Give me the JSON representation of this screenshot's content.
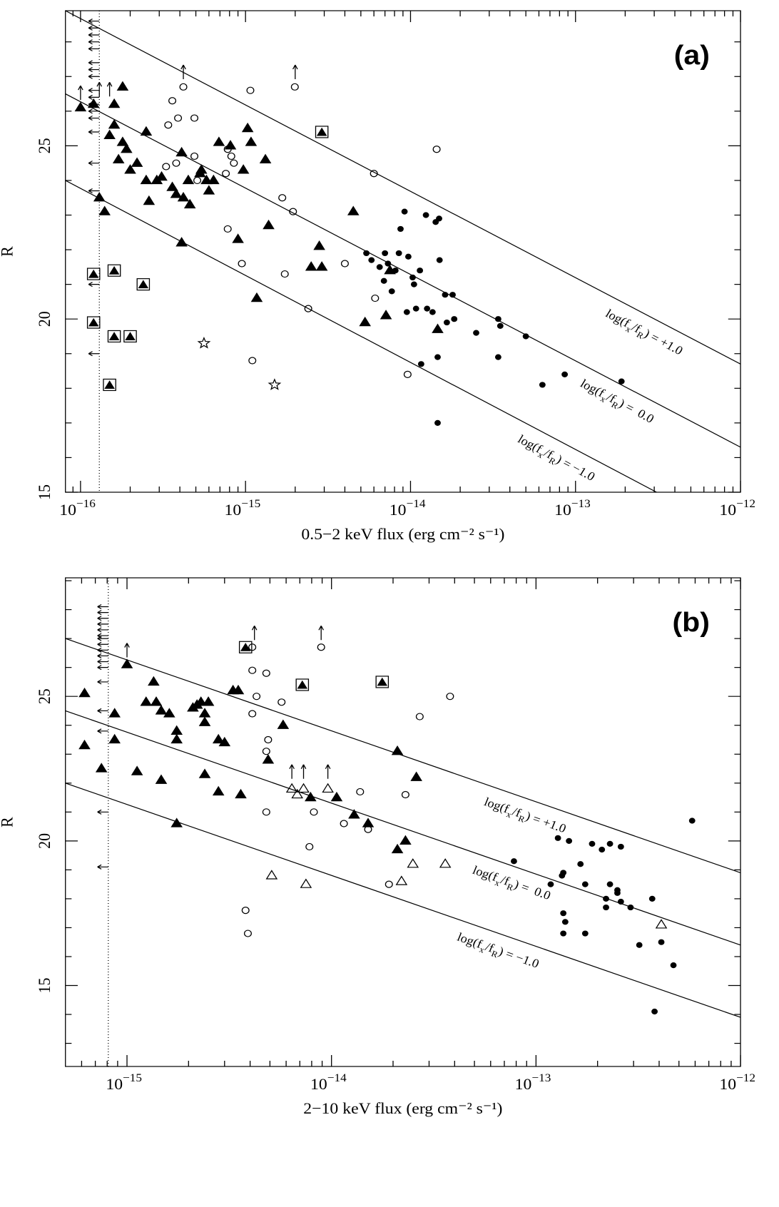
{
  "chart_data": [
    {
      "type": "scatter",
      "panel_label": "(a)",
      "x_label": "0.5−2 keV flux (erg cm⁻² s⁻¹)",
      "y_label": "R",
      "xscale": "log",
      "xlim": [
        8.1e-17,
        1e-12
      ],
      "ylim": [
        15,
        28.9
      ],
      "xticks": [
        {
          "value": 1e-16,
          "label": "10",
          "exponent": "−16"
        },
        {
          "value": 1e-15,
          "label": "10",
          "exponent": "−15"
        },
        {
          "value": 1e-14,
          "label": "10",
          "exponent": "−14"
        },
        {
          "value": 1e-13,
          "label": "10",
          "exponent": "−13"
        },
        {
          "value": 1e-12,
          "label": "10",
          "exponent": "−12"
        }
      ],
      "xminorticks": [
        9e-17,
        2e-16,
        3e-16,
        4e-16,
        5e-16,
        6e-16,
        7e-16,
        8e-16,
        9e-16,
        2e-15,
        3e-15,
        4e-15,
        5e-15,
        6e-15,
        7e-15,
        8e-15,
        9e-15,
        2e-14,
        3e-14,
        4e-14,
        5e-14,
        6e-14,
        7e-14,
        8e-14,
        9e-14,
        2e-13,
        3e-13,
        4e-13,
        5e-13,
        6e-13,
        7e-13,
        8e-13,
        9e-13
      ],
      "yticks": [
        15,
        20,
        25
      ],
      "yminorticks": [
        16,
        17,
        18,
        19,
        21,
        22,
        23,
        24,
        26,
        27,
        28
      ],
      "upper_limit_x": 1.3e-16,
      "series": [
        {
          "marker": "filled-triangle",
          "color": "#000000",
          "x": [
            1e-16,
            1.2e-16,
            1.3e-16,
            1.4e-16,
            1.5e-16,
            1.6e-16,
            1.6e-16,
            1.8e-16,
            1.7e-16,
            1.8e-16,
            1.9e-16,
            2e-16,
            2.2e-16,
            2.5e-16,
            2.5e-16,
            2.6e-16,
            2.9e-16,
            3.1e-16,
            3.6e-16,
            3.8e-16,
            4.2e-16,
            4.6e-16,
            4.1e-16,
            4.1e-16,
            4.5e-16,
            5.3e-16,
            5.4e-16,
            5.8e-16,
            6e-16,
            6.4e-16,
            6.9e-16,
            8.1e-16,
            9e-16,
            9.7e-16,
            1.03e-15,
            1.08e-15,
            1.32e-15,
            1.38e-15,
            1.17e-15,
            2.5e-15,
            2.8e-15,
            2.9e-15,
            4.5e-15,
            5.3e-15,
            7.1e-15,
            7.5e-15,
            1.46e-14
          ],
          "values": [
            26.1,
            26.2,
            23.5,
            23.1,
            25.3,
            25.6,
            26.2,
            26.7,
            24.6,
            25.1,
            24.9,
            24.3,
            24.5,
            25.4,
            24.0,
            23.4,
            24.0,
            24.1,
            23.8,
            23.6,
            23.5,
            23.3,
            22.2,
            24.8,
            24.0,
            24.2,
            24.3,
            24.0,
            23.7,
            24.0,
            25.1,
            25.0,
            22.3,
            24.3,
            25.5,
            25.1,
            24.6,
            22.7,
            20.6,
            21.5,
            22.1,
            21.5,
            23.1,
            19.9,
            20.1,
            21.4,
            19.7
          ]
        },
        {
          "marker": "open-circle",
          "color": "#000000",
          "x": [
            3.4e-16,
            3.6e-16,
            3.9e-16,
            4.2e-16,
            4.9e-16,
            3.3e-16,
            3.8e-16,
            4.9e-16,
            5.1e-16,
            7.6e-16,
            7.8e-16,
            7.8e-16,
            8.2e-16,
            8.5e-16,
            9.5e-16,
            1.07e-15,
            1.1e-15,
            1.67e-15,
            1.73e-15,
            1.94e-15,
            1.99e-15,
            2.4e-15,
            4e-15,
            6e-15,
            6.1e-15,
            9.6e-15,
            1.44e-14
          ],
          "values": [
            25.6,
            26.3,
            25.8,
            26.7,
            25.8,
            24.4,
            24.5,
            24.7,
            24.0,
            24.2,
            22.6,
            24.9,
            24.7,
            24.5,
            21.6,
            26.6,
            18.8,
            23.5,
            21.3,
            23.1,
            26.7,
            20.3,
            21.6,
            24.2,
            20.6,
            18.4,
            24.9
          ]
        },
        {
          "marker": "filled-circle",
          "color": "#000000",
          "x": [
            5.4e-15,
            5.8e-15,
            6.5e-15,
            6.9e-15,
            7e-15,
            7.3e-15,
            7.7e-15,
            8.1e-15,
            8.5e-15,
            8.7e-15,
            9.2e-15,
            9.5e-15,
            9.7e-15,
            1.03e-14,
            1.05e-14,
            1.08e-14,
            1.14e-14,
            1.16e-14,
            1.24e-14,
            1.26e-14,
            1.42e-14,
            1.49e-14,
            1.46e-14,
            1.62e-14,
            1.66e-14,
            1.8e-14,
            1.84e-14,
            1.46e-14,
            2.5e-14,
            3.4e-14,
            3.5e-14,
            3.4e-14,
            5e-14,
            6.3e-14,
            8.6e-14,
            1.9e-13,
            1.5e-14,
            1.36e-14
          ],
          "values": [
            21.9,
            21.7,
            21.5,
            21.1,
            21.9,
            21.6,
            20.8,
            21.4,
            21.9,
            22.6,
            23.1,
            20.2,
            21.8,
            21.2,
            21.0,
            20.3,
            21.4,
            18.7,
            23.0,
            20.3,
            22.8,
            22.9,
            18.9,
            20.7,
            19.9,
            20.7,
            20.0,
            17.0,
            19.6,
            20.0,
            19.8,
            18.9,
            19.5,
            18.1,
            18.4,
            18.2,
            21.7,
            20.2
          ]
        },
        {
          "marker": "boxed-triangle",
          "color": "#000000",
          "x": [
            1.2e-16,
            1.6e-16,
            2.4e-16,
            1.2e-16,
            1.6e-16,
            2e-16,
            1.5e-16,
            2.9e-15
          ],
          "values": [
            21.3,
            21.4,
            21.0,
            19.9,
            19.5,
            19.5,
            18.1,
            25.4
          ]
        },
        {
          "marker": "star",
          "color": "#000000",
          "x": [
            5.6e-16,
            1.5e-15
          ],
          "values": [
            19.3,
            18.1
          ]
        },
        {
          "marker": "left-arrow",
          "color": "#000000",
          "x": [
            1.3e-16,
            1.3e-16,
            1.3e-16,
            1.3e-16,
            1.3e-16,
            1.3e-16,
            1.3e-16,
            1.3e-16,
            1.3e-16,
            1.3e-16,
            1.3e-16,
            1.3e-16,
            1.3e-16,
            1.3e-16,
            1.3e-16,
            1.3e-16,
            1.3e-16,
            1.3e-16
          ],
          "values": [
            28.6,
            28.4,
            28.2,
            28.0,
            27.8,
            27.4,
            27.2,
            27.0,
            26.6,
            26.4,
            26.2,
            26.0,
            25.8,
            25.4,
            24.5,
            23.7,
            21.0,
            19.0
          ]
        },
        {
          "marker": "up-arrow",
          "color": "#000000",
          "x": [
            1e-16,
            1.3e-16,
            1.5e-16,
            4.2e-16,
            2e-15
          ],
          "values": [
            26.2,
            26.3,
            26.3,
            26.8,
            26.8
          ]
        }
      ],
      "lines": [
        {
          "label": [
            "log(f",
            "x",
            "/f",
            "R",
            ") = +1.0"
          ],
          "x": [
            8.1e-17,
            1e-12
          ],
          "values": [
            28.9,
            18.7
          ]
        },
        {
          "label": [
            "log(f",
            "x",
            "/f",
            "R",
            ") =  0.0"
          ],
          "x": [
            8.1e-17,
            1e-12
          ],
          "values": [
            26.5,
            16.3
          ]
        },
        {
          "label": [
            "log(f",
            "x",
            "/f",
            "R",
            ") = −1.0"
          ],
          "x": [
            8.1e-17,
            3.1e-13
          ],
          "values": [
            24.0,
            15.0
          ]
        }
      ]
    },
    {
      "type": "scatter",
      "panel_label": "(b)",
      "x_label": "2−10 keV flux (erg cm⁻² s⁻¹)",
      "y_label": "R",
      "xscale": "log",
      "xlim": [
        5e-16,
        1e-12
      ],
      "ylim": [
        12.2,
        29.1
      ],
      "xticks": [
        {
          "value": 1e-15,
          "label": "10",
          "exponent": "−15"
        },
        {
          "value": 1e-14,
          "label": "10",
          "exponent": "−14"
        },
        {
          "value": 1e-13,
          "label": "10",
          "exponent": "−13"
        },
        {
          "value": 1e-12,
          "label": "10",
          "exponent": "−12"
        }
      ],
      "xminorticks": [
        6e-16,
        7e-16,
        8e-16,
        9e-16,
        2e-15,
        3e-15,
        4e-15,
        5e-15,
        6e-15,
        7e-15,
        8e-15,
        9e-15,
        2e-14,
        3e-14,
        4e-14,
        5e-14,
        6e-14,
        7e-14,
        8e-14,
        9e-14,
        2e-13,
        3e-13,
        4e-13,
        5e-13,
        6e-13,
        7e-13,
        8e-13,
        9e-13
      ],
      "yticks": [
        15,
        20,
        25
      ],
      "yminorticks": [
        13,
        14,
        16,
        17,
        18,
        19,
        21,
        22,
        23,
        24,
        26,
        27,
        28,
        29
      ],
      "upper_limit_x": 8.1e-16,
      "series": [
        {
          "marker": "filled-triangle",
          "color": "#000000",
          "x": [
            6.2e-16,
            6.2e-16,
            7.5e-16,
            8.7e-16,
            8.7e-16,
            1e-15,
            1.12e-15,
            1.24e-15,
            1.35e-15,
            1.47e-15,
            1.39e-15,
            1.47e-15,
            1.61e-15,
            1.75e-15,
            1.75e-15,
            1.75e-15,
            2.1e-15,
            2.2e-15,
            2.3e-15,
            2.4e-15,
            2.4e-15,
            2.5e-15,
            2.4e-15,
            2.8e-15,
            2.8e-15,
            3e-15,
            3.3e-15,
            3.5e-15,
            3.6e-15,
            4.9e-15,
            5.8e-15,
            7.9e-15,
            1.06e-14,
            1.29e-14,
            1.51e-14,
            2.1e-14,
            2.1e-14,
            2.3e-14,
            2.6e-14
          ],
          "values": [
            25.1,
            23.3,
            22.5,
            24.4,
            23.5,
            26.1,
            22.4,
            24.8,
            25.5,
            22.1,
            24.8,
            24.5,
            24.4,
            23.8,
            23.5,
            20.6,
            24.6,
            24.7,
            24.8,
            24.4,
            24.1,
            24.8,
            22.3,
            23.5,
            21.7,
            23.4,
            25.2,
            25.2,
            21.6,
            22.8,
            24.0,
            21.5,
            21.5,
            20.9,
            20.6,
            23.1,
            19.7,
            20.0,
            22.2
          ]
        },
        {
          "marker": "open-circle",
          "color": "#000000",
          "x": [
            4.1e-15,
            4.8e-15,
            4.3e-15,
            4.1e-15,
            4.9e-15,
            4.8e-15,
            5.7e-15,
            4.8e-15,
            8.2e-15,
            7.8e-15,
            1.15e-14,
            1.51e-14,
            1.38e-14,
            1.91e-14,
            2.3e-14,
            2.7e-14,
            3.8e-14,
            3.8e-15,
            3.9e-15,
            4.1e-15,
            8.9e-15
          ],
          "values": [
            25.9,
            25.8,
            25.0,
            24.4,
            23.5,
            23.1,
            24.8,
            21.0,
            21.0,
            19.8,
            20.6,
            20.4,
            21.7,
            18.5,
            21.6,
            24.3,
            25.0,
            17.6,
            16.8,
            26.7,
            26.7
          ]
        },
        {
          "marker": "filled-circle",
          "color": "#000000",
          "x": [
            7.8e-14,
            1.18e-13,
            1.28e-13,
            1.34e-13,
            1.36e-13,
            1.45e-13,
            1.36e-13,
            1.39e-13,
            1.36e-13,
            1.65e-13,
            1.74e-13,
            1.74e-13,
            1.88e-13,
            2.1e-13,
            2.2e-13,
            2.2e-13,
            2.3e-13,
            2.3e-13,
            2.5e-13,
            2.5e-13,
            2.6e-13,
            2.6e-13,
            2.9e-13,
            3.7e-13,
            3.8e-13,
            4.1e-13,
            4.7e-13,
            5.8e-13,
            3.2e-13
          ],
          "values": [
            19.3,
            18.5,
            20.1,
            18.8,
            18.9,
            20.0,
            17.5,
            17.2,
            16.8,
            19.2,
            18.5,
            16.8,
            19.9,
            19.7,
            18.0,
            17.7,
            19.9,
            18.5,
            18.3,
            18.2,
            17.9,
            19.8,
            17.7,
            18.0,
            14.1,
            16.5,
            15.7,
            20.7,
            16.4
          ]
        },
        {
          "marker": "boxed-triangle",
          "color": "#000000",
          "x": [
            3.8e-15,
            7.2e-15,
            1.77e-14
          ],
          "values": [
            26.7,
            25.4,
            25.5
          ]
        },
        {
          "marker": "open-triangle",
          "color": "#000000",
          "x": [
            6.4e-15,
            6.8e-15,
            7.3e-15,
            9.6e-15,
            5.1e-15,
            7.5e-15,
            2.2e-14,
            2.5e-14,
            3.6e-14,
            4.1e-13
          ],
          "values": [
            21.8,
            21.6,
            21.8,
            21.8,
            18.8,
            18.5,
            18.6,
            19.2,
            19.2,
            17.1
          ]
        },
        {
          "marker": "left-arrow",
          "color": "#000000",
          "x": [
            8.1e-16,
            8.1e-16,
            8.1e-16,
            8.1e-16,
            8.1e-16,
            8.1e-16,
            8.1e-16,
            8.1e-16,
            8.1e-16,
            8.1e-16,
            8.1e-16,
            8.1e-16,
            8.1e-16,
            8.1e-16,
            8.1e-16,
            8.1e-16,
            8.1e-16
          ],
          "values": [
            28.1,
            27.9,
            27.7,
            27.5,
            27.3,
            27.1,
            27.0,
            26.8,
            26.6,
            26.4,
            26.2,
            26.0,
            25.5,
            24.5,
            23.8,
            21.0,
            19.1
          ]
        },
        {
          "marker": "up-arrow",
          "color": "#000000",
          "x": [
            1e-15,
            4.2e-15,
            8.9e-15,
            6.4e-15,
            7.3e-15,
            9.6e-15
          ],
          "values": [
            26.2,
            26.8,
            26.8,
            22.0,
            22.0,
            22.0
          ]
        }
      ],
      "lines": [
        {
          "label": [
            "log(f",
            "x",
            "/f",
            "R",
            ") = +1.0"
          ],
          "x": [
            5e-16,
            1e-12
          ],
          "values": [
            27.0,
            18.9
          ]
        },
        {
          "label": [
            "log(f",
            "x",
            "/f",
            "R",
            ") =  0.0"
          ],
          "x": [
            5e-16,
            1e-12
          ],
          "values": [
            24.5,
            16.4
          ]
        },
        {
          "label": [
            "log(f",
            "x",
            "/f",
            "R",
            ") = −1.0"
          ],
          "x": [
            5e-16,
            1e-12
          ],
          "values": [
            22.0,
            13.9
          ]
        }
      ]
    }
  ]
}
